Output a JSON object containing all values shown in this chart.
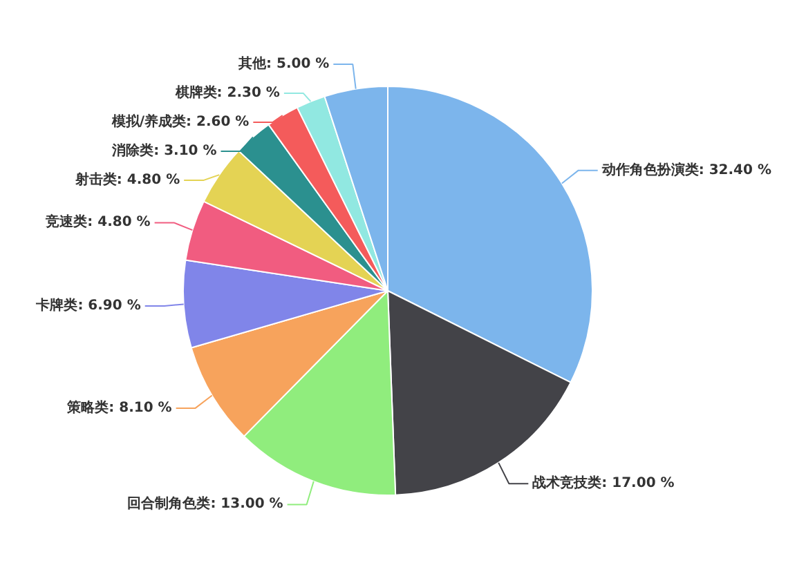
{
  "chart_data": {
    "type": "pie",
    "categories": [
      "动作角色扮演类",
      "战术竞技类",
      "回合制角色类",
      "策略类",
      "卡牌类",
      "竞速类",
      "射击类",
      "消除类",
      "模拟/养成类",
      "棋牌类",
      "其他"
    ],
    "values": [
      32.4,
      17.0,
      13.0,
      8.1,
      6.9,
      4.8,
      4.8,
      3.1,
      2.6,
      2.3,
      5.0
    ],
    "colors": [
      "#7cb5ec",
      "#434348",
      "#90ed7d",
      "#f7a35c",
      "#8085e9",
      "#f15c80",
      "#e4d354",
      "#2b908f",
      "#f45b5b",
      "#91e8e1",
      "#7cb5ec"
    ],
    "value_labels": [
      "32.40 %",
      "17.00 %",
      "13.00 %",
      "8.10 %",
      "6.90 %",
      "4.80 %",
      "4.80 %",
      "3.10 %",
      "2.60 %",
      "2.30 %",
      "5.00 %"
    ]
  }
}
